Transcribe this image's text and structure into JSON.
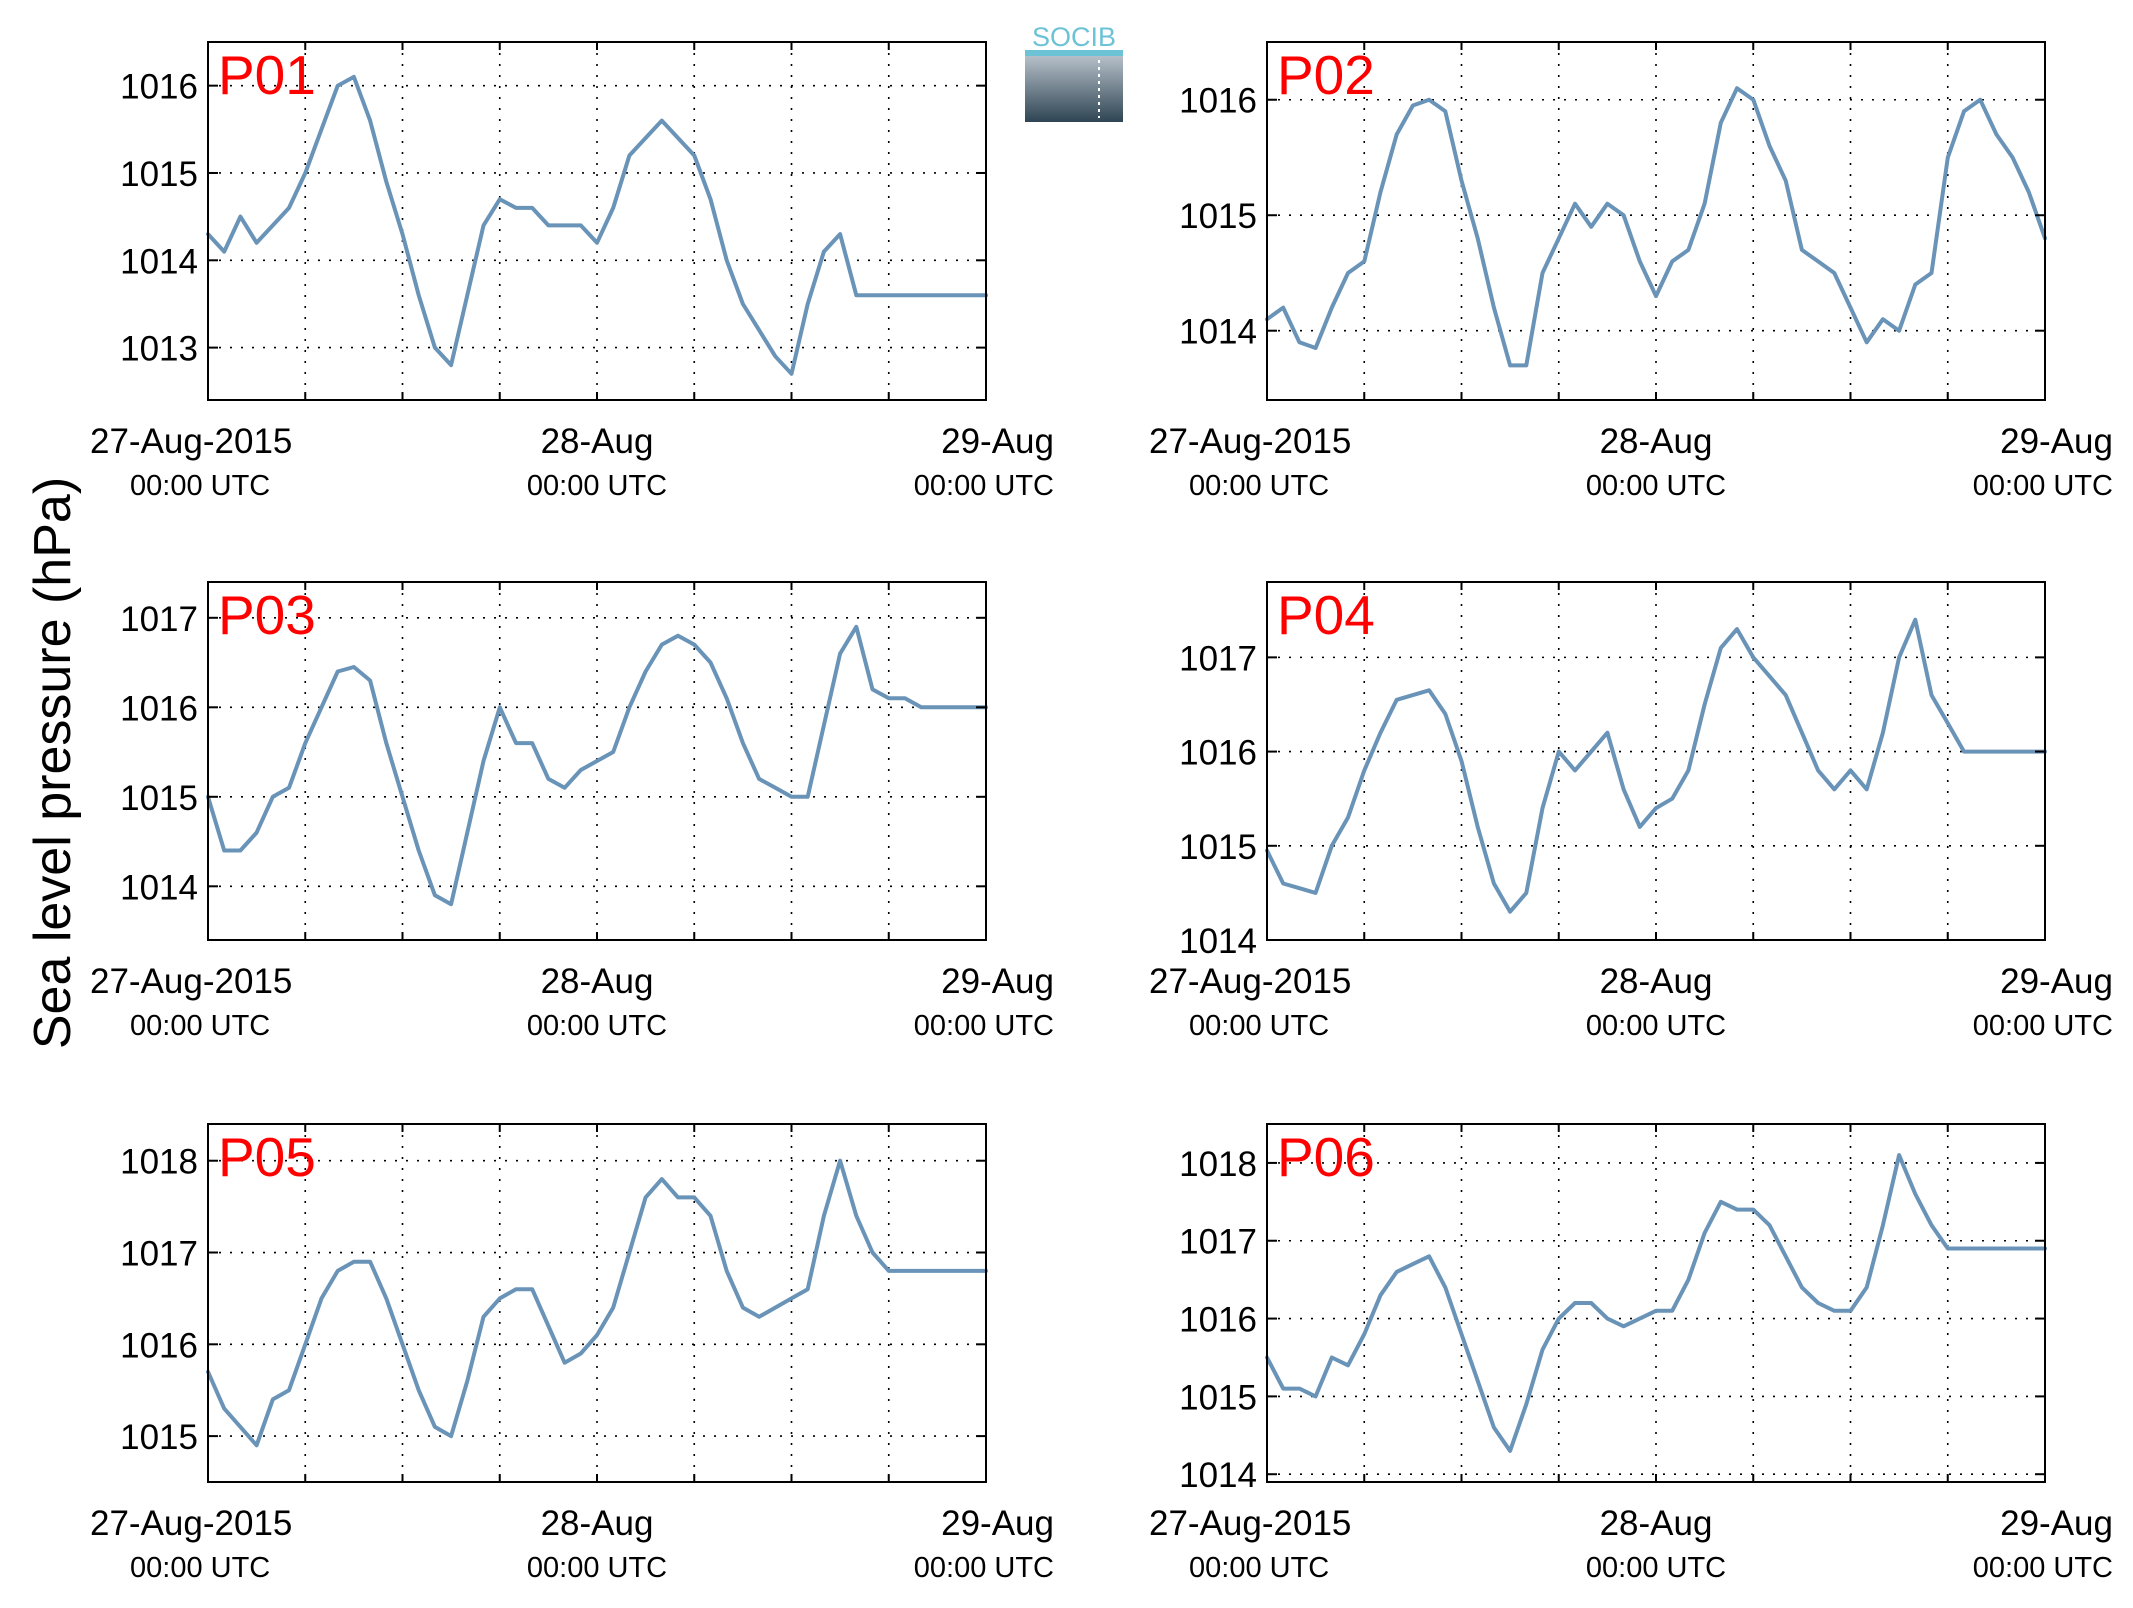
{
  "figure": {
    "ylabel": "Sea level pressure (hPa)",
    "logo_text": "SOCIB",
    "colors": {
      "line": "#6a93b8",
      "panel_label": "#ff0000",
      "axis": "#000000",
      "grid": "#000000"
    },
    "x_ticks": [
      {
        "value": 0,
        "line1": "27-Aug-2015",
        "line2": "00:00 UTC"
      },
      {
        "value": 24,
        "line1": "28-Aug",
        "line2": "00:00 UTC"
      },
      {
        "value": 48,
        "line1": "29-Aug",
        "line2": "00:00 UTC"
      }
    ]
  },
  "chart_data": [
    {
      "type": "line",
      "panel": "P01",
      "xlim": [
        0,
        48
      ],
      "ylim": [
        1012.4,
        1016.5
      ],
      "yticks": [
        1013,
        1014,
        1015,
        1016
      ],
      "grid": true,
      "x": [
        0,
        1,
        2,
        3,
        4,
        5,
        6,
        7,
        8,
        9,
        10,
        11,
        12,
        13,
        14,
        15,
        16,
        17,
        18,
        19,
        20,
        21,
        22,
        23,
        24,
        25,
        26,
        27,
        28,
        29,
        30,
        31,
        32,
        33,
        34,
        35,
        36,
        37,
        38,
        39,
        40,
        41,
        42,
        43,
        44,
        45,
        46,
        47,
        48
      ],
      "y": [
        1014.3,
        1014.1,
        1014.5,
        1014.2,
        1014.4,
        1014.6,
        1015.0,
        1015.5,
        1016.0,
        1016.1,
        1015.6,
        1014.9,
        1014.3,
        1013.6,
        1013.0,
        1012.8,
        1013.6,
        1014.4,
        1014.7,
        1014.6,
        1014.6,
        1014.4,
        1014.4,
        1014.4,
        1014.2,
        1014.6,
        1015.2,
        1015.4,
        1015.6,
        1015.4,
        1015.2,
        1014.7,
        1014.0,
        1013.5,
        1013.2,
        1012.9,
        1012.7,
        1013.5,
        1014.1,
        1014.3,
        1013.6,
        1013.6,
        1013.6,
        1013.6,
        1013.6,
        1013.6,
        1013.6,
        1013.6,
        1013.6
      ]
    },
    {
      "type": "line",
      "panel": "P02",
      "xlim": [
        0,
        48
      ],
      "ylim": [
        1013.4,
        1016.5
      ],
      "yticks": [
        1014,
        1015,
        1016
      ],
      "grid": true,
      "x": [
        0,
        1,
        2,
        3,
        4,
        5,
        6,
        7,
        8,
        9,
        10,
        11,
        12,
        13,
        14,
        15,
        16,
        17,
        18,
        19,
        20,
        21,
        22,
        23,
        24,
        25,
        26,
        27,
        28,
        29,
        30,
        31,
        32,
        33,
        34,
        35,
        36,
        37,
        38,
        39,
        40,
        41,
        42,
        43,
        44,
        45,
        46,
        47,
        48
      ],
      "y": [
        1014.1,
        1014.2,
        1013.9,
        1013.85,
        1014.2,
        1014.5,
        1014.6,
        1015.2,
        1015.7,
        1015.95,
        1016.0,
        1015.9,
        1015.3,
        1014.8,
        1014.2,
        1013.7,
        1013.7,
        1014.5,
        1014.8,
        1015.1,
        1014.9,
        1015.1,
        1015.0,
        1014.6,
        1014.3,
        1014.6,
        1014.7,
        1015.1,
        1015.8,
        1016.1,
        1016.0,
        1015.6,
        1015.3,
        1014.7,
        1014.6,
        1014.5,
        1014.2,
        1013.9,
        1014.1,
        1014.0,
        1014.4,
        1014.5,
        1015.5,
        1015.9,
        1016.0,
        1015.7,
        1015.5,
        1015.2,
        1014.8
      ]
    },
    {
      "type": "line",
      "panel": "P03",
      "xlim": [
        0,
        48
      ],
      "ylim": [
        1013.4,
        1017.4
      ],
      "yticks": [
        1014,
        1015,
        1016,
        1017
      ],
      "grid": true,
      "x": [
        0,
        1,
        2,
        3,
        4,
        5,
        6,
        7,
        8,
        9,
        10,
        11,
        12,
        13,
        14,
        15,
        16,
        17,
        18,
        19,
        20,
        21,
        22,
        23,
        24,
        25,
        26,
        27,
        28,
        29,
        30,
        31,
        32,
        33,
        34,
        35,
        36,
        37,
        38,
        39,
        40,
        41,
        42,
        43,
        44,
        45,
        46,
        47,
        48
      ],
      "y": [
        1015.0,
        1014.4,
        1014.4,
        1014.6,
        1015.0,
        1015.1,
        1015.6,
        1016.0,
        1016.4,
        1016.45,
        1016.3,
        1015.6,
        1015.0,
        1014.4,
        1013.9,
        1013.8,
        1014.6,
        1015.4,
        1016.0,
        1015.6,
        1015.6,
        1015.2,
        1015.1,
        1015.3,
        1015.4,
        1015.5,
        1016.0,
        1016.4,
        1016.7,
        1016.8,
        1016.7,
        1016.5,
        1016.1,
        1015.6,
        1015.2,
        1015.1,
        1015.0,
        1015.0,
        1015.8,
        1016.6,
        1016.9,
        1016.2,
        1016.1,
        1016.1,
        1016.0,
        1016.0,
        1016.0,
        1016.0,
        1016.0
      ]
    },
    {
      "type": "line",
      "panel": "P04",
      "xlim": [
        0,
        48
      ],
      "ylim": [
        1014.0,
        1017.8
      ],
      "yticks": [
        1014,
        1015,
        1016,
        1017
      ],
      "grid": true,
      "x": [
        0,
        1,
        2,
        3,
        4,
        5,
        6,
        7,
        8,
        9,
        10,
        11,
        12,
        13,
        14,
        15,
        16,
        17,
        18,
        19,
        20,
        21,
        22,
        23,
        24,
        25,
        26,
        27,
        28,
        29,
        30,
        31,
        32,
        33,
        34,
        35,
        36,
        37,
        38,
        39,
        40,
        41,
        42,
        43,
        44,
        45,
        46,
        47,
        48
      ],
      "y": [
        1014.95,
        1014.6,
        1014.55,
        1014.5,
        1015.0,
        1015.3,
        1015.8,
        1016.2,
        1016.55,
        1016.6,
        1016.65,
        1016.4,
        1015.9,
        1015.2,
        1014.6,
        1014.3,
        1014.5,
        1015.4,
        1016.0,
        1015.8,
        1016.0,
        1016.2,
        1015.6,
        1015.2,
        1015.4,
        1015.5,
        1015.8,
        1016.5,
        1017.1,
        1017.3,
        1017.0,
        1016.8,
        1016.6,
        1016.2,
        1015.8,
        1015.6,
        1015.8,
        1015.6,
        1016.2,
        1017.0,
        1017.4,
        1016.6,
        1016.3,
        1016.0,
        1016.0,
        1016.0,
        1016.0,
        1016.0,
        1016.0
      ]
    },
    {
      "type": "line",
      "panel": "P05",
      "xlim": [
        0,
        48
      ],
      "ylim": [
        1014.5,
        1018.4
      ],
      "yticks": [
        1015,
        1016,
        1017,
        1018
      ],
      "grid": true,
      "x": [
        0,
        1,
        2,
        3,
        4,
        5,
        6,
        7,
        8,
        9,
        10,
        11,
        12,
        13,
        14,
        15,
        16,
        17,
        18,
        19,
        20,
        21,
        22,
        23,
        24,
        25,
        26,
        27,
        28,
        29,
        30,
        31,
        32,
        33,
        34,
        35,
        36,
        37,
        38,
        39,
        40,
        41,
        42,
        43,
        44,
        45,
        46,
        47,
        48
      ],
      "y": [
        1015.7,
        1015.3,
        1015.1,
        1014.9,
        1015.4,
        1015.5,
        1016.0,
        1016.5,
        1016.8,
        1016.9,
        1016.9,
        1016.5,
        1016.0,
        1015.5,
        1015.1,
        1015.0,
        1015.6,
        1016.3,
        1016.5,
        1016.6,
        1016.6,
        1016.2,
        1015.8,
        1015.9,
        1016.1,
        1016.4,
        1017.0,
        1017.6,
        1017.8,
        1017.6,
        1017.6,
        1017.4,
        1016.8,
        1016.4,
        1016.3,
        1016.4,
        1016.5,
        1016.6,
        1017.4,
        1018.0,
        1017.4,
        1017.0,
        1016.8,
        1016.8,
        1016.8,
        1016.8,
        1016.8,
        1016.8,
        1016.8
      ]
    },
    {
      "type": "line",
      "panel": "P06",
      "xlim": [
        0,
        48
      ],
      "ylim": [
        1013.9,
        1018.5
      ],
      "yticks": [
        1014,
        1015,
        1016,
        1017,
        1018
      ],
      "grid": true,
      "x": [
        0,
        1,
        2,
        3,
        4,
        5,
        6,
        7,
        8,
        9,
        10,
        11,
        12,
        13,
        14,
        15,
        16,
        17,
        18,
        19,
        20,
        21,
        22,
        23,
        24,
        25,
        26,
        27,
        28,
        29,
        30,
        31,
        32,
        33,
        34,
        35,
        36,
        37,
        38,
        39,
        40,
        41,
        42,
        43,
        44,
        45,
        46,
        47,
        48
      ],
      "y": [
        1015.5,
        1015.1,
        1015.1,
        1015.0,
        1015.5,
        1015.4,
        1015.8,
        1016.3,
        1016.6,
        1016.7,
        1016.8,
        1016.4,
        1015.8,
        1015.2,
        1014.6,
        1014.3,
        1014.9,
        1015.6,
        1016.0,
        1016.2,
        1016.2,
        1016.0,
        1015.9,
        1016.0,
        1016.1,
        1016.1,
        1016.5,
        1017.1,
        1017.5,
        1017.4,
        1017.4,
        1017.2,
        1016.8,
        1016.4,
        1016.2,
        1016.1,
        1016.1,
        1016.4,
        1017.2,
        1018.1,
        1017.6,
        1017.2,
        1016.9,
        1016.9,
        1016.9,
        1016.9,
        1016.9,
        1016.9,
        1016.9
      ]
    }
  ]
}
